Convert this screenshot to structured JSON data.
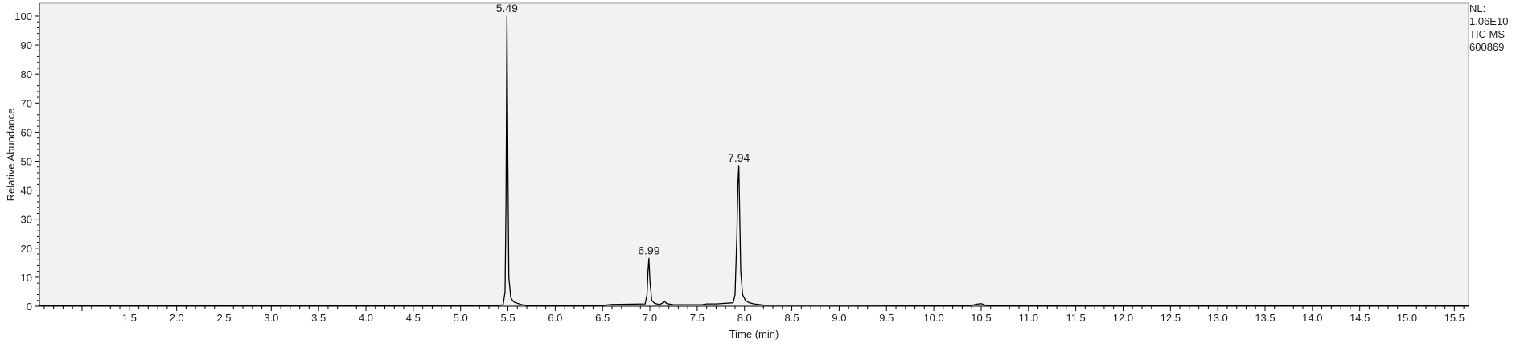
{
  "chart_data": {
    "type": "line",
    "xlabel": "Time (min)",
    "ylabel": "Relative Abundance",
    "xlim": [
      0.55,
      15.65
    ],
    "ylim": [
      0,
      100
    ],
    "x_ticks": [
      1.5,
      2.0,
      2.5,
      3.0,
      3.5,
      4.0,
      4.5,
      5.0,
      5.5,
      6.0,
      6.5,
      7.0,
      7.5,
      8.0,
      8.5,
      9.0,
      9.5,
      10.0,
      10.5,
      11.0,
      11.5,
      12.0,
      12.5,
      13.0,
      13.5,
      14.0,
      14.5,
      15.0,
      15.5
    ],
    "x_tick_labels": [
      "1.5",
      "2.0",
      "2.5",
      "3.0",
      "3.5",
      "4.0",
      "4.5",
      "5.0",
      "5.5",
      "6.0",
      "6.5",
      "7.0",
      "7.5",
      "8.0",
      "8.5",
      "9.0",
      "9.5",
      "10.0",
      "10.5",
      "11.0",
      "11.5",
      "12.0",
      "12.5",
      "13.0",
      "13.5",
      "14.0",
      "14.5",
      "15.0",
      "15.5"
    ],
    "y_ticks": [
      0,
      10,
      20,
      30,
      40,
      50,
      60,
      70,
      80,
      90,
      100
    ],
    "y_tick_labels": [
      "0",
      "10",
      "20",
      "30",
      "40",
      "50",
      "60",
      "70",
      "80",
      "90",
      "100"
    ],
    "grid": false,
    "background": "#f2f2f2",
    "line_color": "#000000",
    "series": [
      {
        "x": [
          0.55,
          5.4,
          5.45,
          5.47,
          5.48,
          5.49,
          5.5,
          5.51,
          5.53,
          5.56,
          5.6,
          5.65,
          5.7,
          6.5,
          6.6,
          6.95,
          6.97,
          6.98,
          6.99,
          7.0,
          7.02,
          7.05,
          7.1,
          7.13,
          7.15,
          7.18,
          7.25,
          7.55,
          7.6,
          7.7,
          7.88,
          7.9,
          7.92,
          7.93,
          7.94,
          7.95,
          7.96,
          7.98,
          8.01,
          8.05,
          8.1,
          8.2,
          10.4,
          10.45,
          10.5,
          10.55,
          15.65
        ],
        "y": [
          0.3,
          0.3,
          0.5,
          5,
          35,
          100,
          48,
          10,
          3,
          1.5,
          1.0,
          0.5,
          0.3,
          0.3,
          0.6,
          0.8,
          4,
          12,
          16.5,
          9,
          2,
          1.0,
          0.6,
          1.0,
          1.8,
          0.9,
          0.5,
          0.5,
          0.8,
          0.8,
          1.2,
          4,
          25,
          42,
          48.5,
          30,
          12,
          4,
          2,
          1.2,
          0.8,
          0.4,
          0.3,
          0.7,
          0.9,
          0.3,
          0.3
        ]
      }
    ],
    "peaks": [
      {
        "x": 5.49,
        "y": 100,
        "label": "5.49"
      },
      {
        "x": 6.99,
        "y": 16.5,
        "label": "6.99"
      },
      {
        "x": 7.94,
        "y": 48.5,
        "label": "7.94"
      }
    ]
  },
  "info": {
    "nl_label": "NL:",
    "nl_value": "1.06E10",
    "scan_type": "TIC  MS",
    "sample_id": "600869"
  }
}
